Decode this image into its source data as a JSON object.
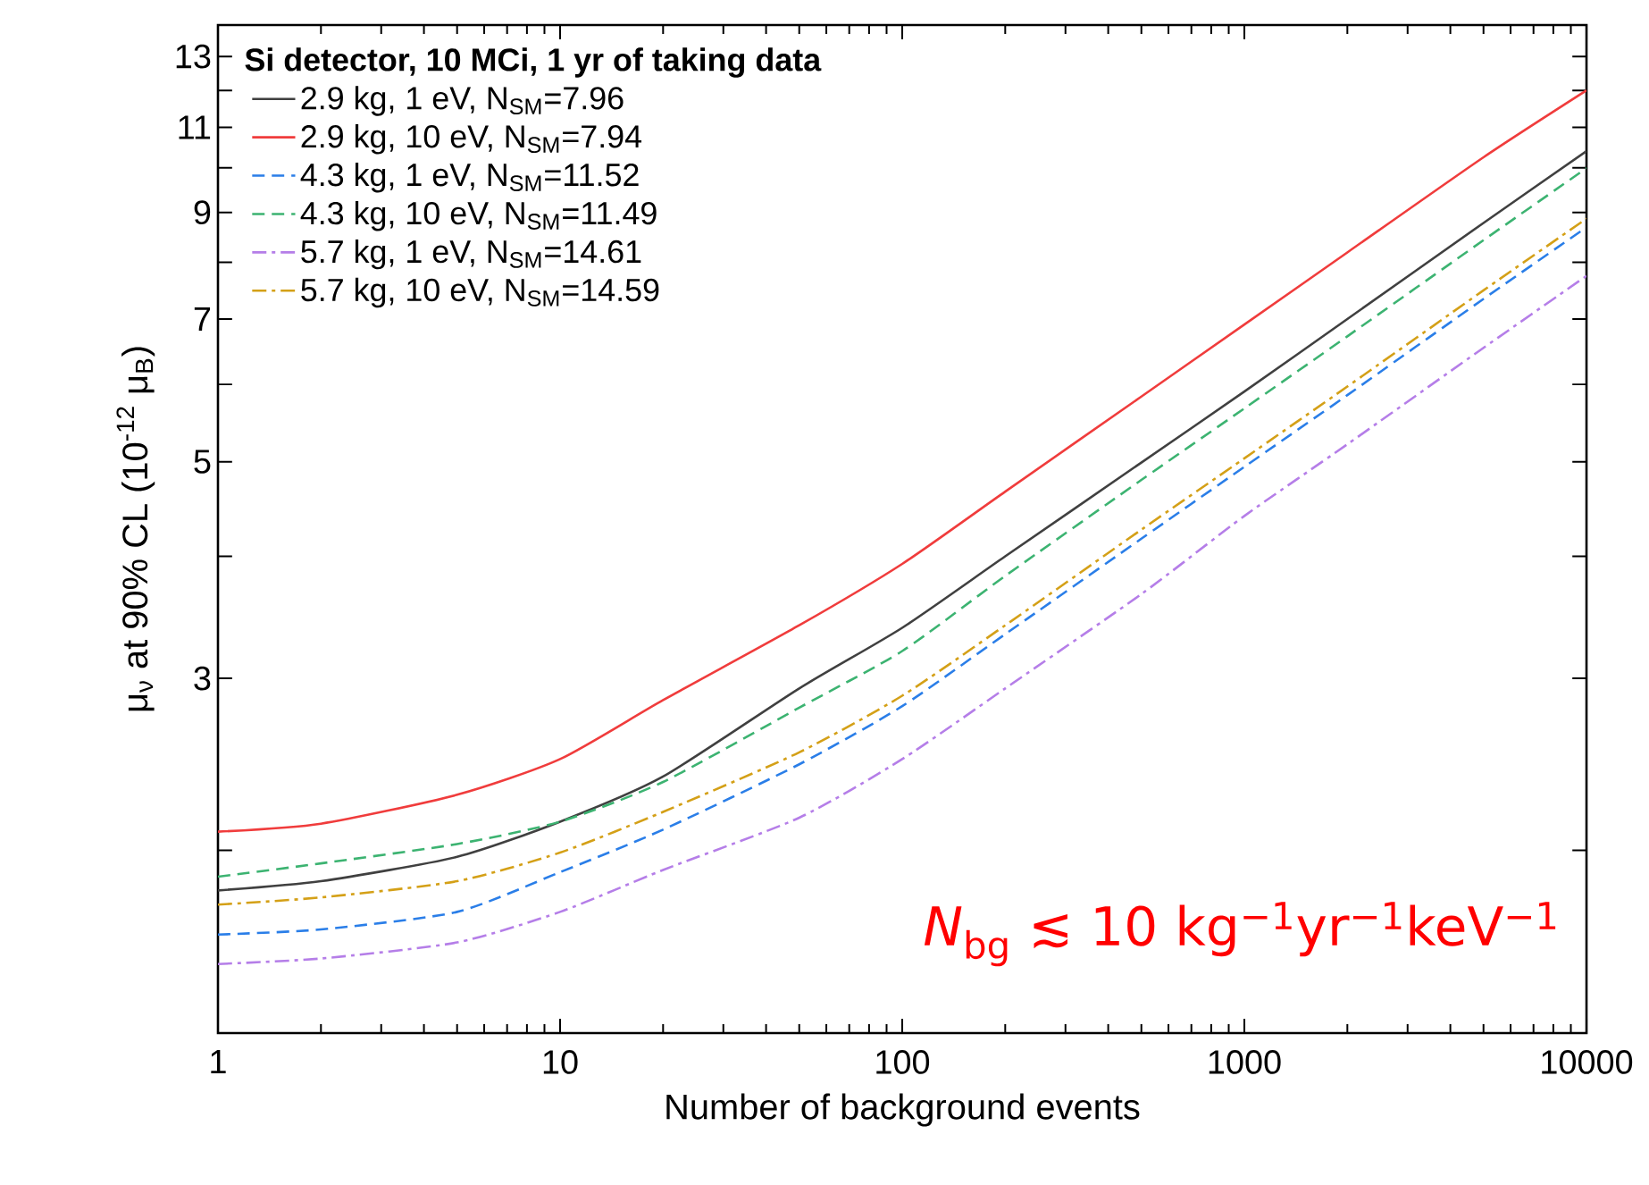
{
  "chart_data": {
    "type": "line",
    "xlabel": "Number of background events",
    "ylabel": "μ$_{ν}$ at 90% CL (10$^{-12}$ μ$_{B}$)",
    "legend_title": "Si detector, 10 MCi, 1 yr of taking data",
    "annotations": [
      "*N*$_{bg}$ ≲ 10 kg$^{−1}$yr$^{−1}$keV$^{−1}$"
    ],
    "log": "xy",
    "legend": "top left",
    "grid": false,
    "x": [
      1,
      2,
      5,
      10,
      20,
      50,
      100,
      200,
      500,
      1000,
      2000,
      5000,
      10000
    ],
    "xlim": [
      1,
      10000
    ],
    "xticks": [
      1,
      10,
      100,
      1000,
      10000
    ],
    "ylim": [
      1.3,
      14
    ],
    "yticks": [
      {
        "value": 2,
        "label": null
      },
      3,
      {
        "value": 4,
        "label": null
      },
      5,
      {
        "value": 6,
        "label": null
      },
      7,
      {
        "value": 8,
        "label": null
      },
      9,
      {
        "value": 10,
        "label": null
      },
      11,
      {
        "value": 12,
        "label": null
      },
      13
    ],
    "series": [
      {
        "name": "2.9 kg, 1 eV, N$_{SM}$=7.96",
        "color": "#404040",
        "line_style": "solid",
        "values": [
          1.82,
          1.86,
          1.97,
          2.14,
          2.38,
          2.93,
          3.38,
          4.0,
          4.99,
          5.9,
          7.0,
          8.78,
          10.4
        ]
      },
      {
        "name": "2.9 kg, 10 eV, N$_{SM}$=7.94",
        "color": "#f03c3c",
        "line_style": "solid",
        "values": [
          2.09,
          2.13,
          2.28,
          2.48,
          2.85,
          3.4,
          3.93,
          4.66,
          5.83,
          6.91,
          8.19,
          10.25,
          12.0
        ]
      },
      {
        "name": "4.3 kg, 1 eV, N$_{SM}$=11.52",
        "color": "#2a7ee8",
        "line_style": "dashed",
        "values": [
          1.64,
          1.66,
          1.73,
          1.9,
          2.1,
          2.45,
          2.81,
          3.33,
          4.17,
          4.94,
          5.85,
          7.34,
          8.69
        ]
      },
      {
        "name": "4.3 kg, 10 eV, N$_{SM}$=11.49",
        "color": "#3cb371",
        "line_style": "dashed",
        "values": [
          1.88,
          1.94,
          2.03,
          2.14,
          2.35,
          2.8,
          3.2,
          3.82,
          4.79,
          5.67,
          6.72,
          8.43,
          9.99
        ]
      },
      {
        "name": "5.7 kg, 1 eV, N$_{SM}$=14.61",
        "color": "#b57ee8",
        "line_style": "dashdot",
        "values": [
          1.53,
          1.55,
          1.61,
          1.73,
          1.91,
          2.16,
          2.48,
          2.93,
          3.66,
          4.4,
          5.21,
          6.54,
          7.75
        ]
      },
      {
        "name": "5.7 kg, 10 eV, N$_{SM}$=14.59",
        "color": "#d4a017",
        "line_style": "dashdot",
        "values": [
          1.76,
          1.79,
          1.86,
          1.99,
          2.19,
          2.52,
          2.88,
          3.4,
          4.26,
          5.04,
          5.97,
          7.49,
          8.87
        ]
      }
    ]
  }
}
